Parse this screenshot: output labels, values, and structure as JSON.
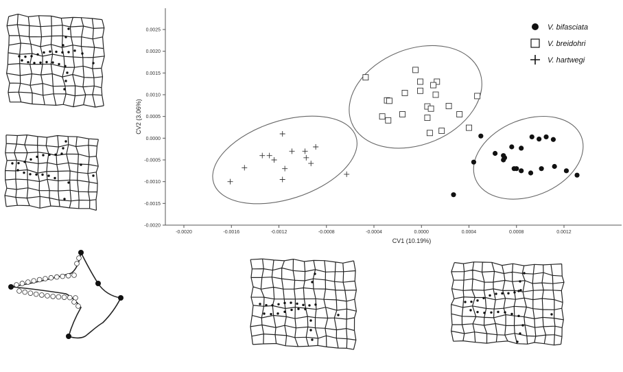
{
  "chart_data": {
    "type": "scatter",
    "xlabel": "CV1  (10.19%)",
    "ylabel": "CV2  (3.06%)",
    "xlim": [
      -0.0022,
      0.0015
    ],
    "ylim": [
      -0.002,
      0.003
    ],
    "x_ticks": [
      "-0.0020",
      "-0.0016",
      "-0.0012",
      "-0.0008",
      "-0.0004",
      "0.0000",
      "0.0004",
      "0.0008",
      "0.0012"
    ],
    "x_tick_values": [
      -0.002,
      -0.0016,
      -0.0012,
      -0.0008,
      -0.0004,
      0.0,
      0.0004,
      0.0008,
      0.0012
    ],
    "y_ticks": [
      "0.0025",
      "0.0020",
      "0.0015",
      "0.0010",
      "0.0005",
      "0.0000",
      "-0.0005",
      "-0.0010",
      "-0.0015",
      "-0.0020"
    ],
    "y_tick_values": [
      0.0025,
      0.002,
      0.0015,
      0.001,
      0.0005,
      0.0,
      -0.0005,
      -0.001,
      -0.0015,
      -0.002
    ],
    "grid": false,
    "legend_position": "top-right",
    "series": [
      {
        "name": "V. bifasciata",
        "marker": "filled-circle",
        "points": [
          [
            0.00105,
            3e-05
          ],
          [
            0.00093,
            3e-05
          ],
          [
            0.00111,
            -3e-05
          ],
          [
            0.00099,
            -2e-05
          ],
          [
            0.00084,
            -0.00023
          ],
          [
            0.00076,
            -0.0002
          ],
          [
            0.00062,
            -0.00035
          ],
          [
            0.0007,
            -0.00045
          ],
          [
            0.00069,
            -0.0005
          ],
          [
            0.00069,
            -0.0004
          ],
          [
            0.00084,
            -0.00075
          ],
          [
            0.0008,
            -0.0007
          ],
          [
            0.00078,
            -0.0007
          ],
          [
            0.00092,
            -0.0008
          ],
          [
            0.00101,
            -0.0007
          ],
          [
            0.00112,
            -0.00065
          ],
          [
            0.00122,
            -0.00075
          ],
          [
            0.00131,
            -0.00085
          ],
          [
            0.0005,
            5e-05
          ],
          [
            0.00044,
            -0.00055
          ],
          [
            0.00027,
            -0.0013
          ]
        ]
      },
      {
        "name": "V. breidohri",
        "marker": "open-square",
        "points": [
          [
            -0.00047,
            0.0014
          ],
          [
            -5e-05,
            0.00157
          ],
          [
            -1e-05,
            0.0013
          ],
          [
            0.00013,
            0.0013
          ],
          [
            -0.00014,
            0.00104
          ],
          [
            -1e-05,
            0.00109
          ],
          [
            0.0001,
            0.00122
          ],
          [
            0.00012,
            0.001
          ],
          [
            0.00047,
            0.00097
          ],
          [
            -0.00029,
            0.00087
          ],
          [
            -0.00027,
            0.00086
          ],
          [
            5e-05,
            0.00073
          ],
          [
            8e-05,
            0.00068
          ],
          [
            0.00023,
            0.00074
          ],
          [
            0.00032,
            0.00055
          ],
          [
            -0.00016,
            0.00055
          ],
          [
            5e-05,
            0.00047
          ],
          [
            -0.00033,
            0.0005
          ],
          [
            -0.00028,
            0.00041
          ],
          [
            0.00017,
            0.00017
          ],
          [
            7e-05,
            0.00012
          ],
          [
            0.0004,
            0.00024
          ]
        ]
      },
      {
        "name": "V. hartwegi",
        "marker": "plus",
        "points": [
          [
            -0.00117,
            0.0001
          ],
          [
            -0.00109,
            -0.0003
          ],
          [
            -0.00098,
            -0.0003
          ],
          [
            -0.00089,
            -0.0002
          ],
          [
            -0.00134,
            -0.0004
          ],
          [
            -0.00128,
            -0.0004
          ],
          [
            -0.00124,
            -0.0005
          ],
          [
            -0.00097,
            -0.00045
          ],
          [
            -0.00115,
            -0.0007
          ],
          [
            -0.00149,
            -0.00068
          ],
          [
            -0.00093,
            -0.00058
          ],
          [
            -0.00117,
            -0.00095
          ],
          [
            -0.00161,
            -0.001
          ],
          [
            -0.00063,
            -0.00083
          ]
        ]
      }
    ],
    "ellipses": [
      {
        "group": "V. bifasciata",
        "center": [
          0.0009,
          -0.00045
        ],
        "rx": 0.00048,
        "ry": 0.00088,
        "angle": -22
      },
      {
        "group": "V. breidohri",
        "center": [
          -5e-05,
          0.00095
        ],
        "rx": 0.00058,
        "ry": 0.0011,
        "angle": -22
      },
      {
        "group": "V. hartwegi",
        "center": [
          -0.00115,
          -0.0005
        ],
        "rx": 0.00063,
        "ry": 0.0009,
        "angle": -18
      }
    ]
  },
  "colors": {
    "axis": "#555555",
    "marker": "#111111",
    "ellipse": "#666666",
    "grid_drawing": "#222222"
  },
  "thumbnails": [
    {
      "name": "deformation-grid-top-left-1"
    },
    {
      "name": "deformation-grid-top-left-2"
    },
    {
      "name": "landmark-outline"
    },
    {
      "name": "deformation-grid-bottom-center"
    },
    {
      "name": "deformation-grid-bottom-right"
    }
  ]
}
